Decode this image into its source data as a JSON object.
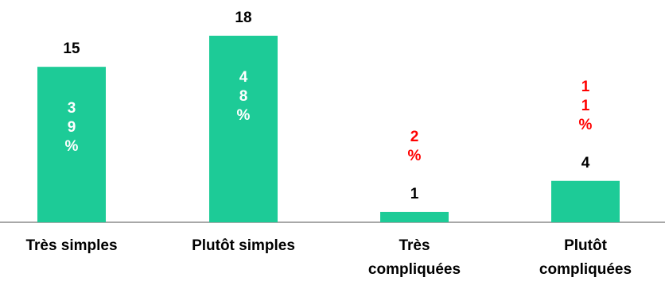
{
  "chart_data": {
    "type": "bar",
    "categories": [
      "Très simples",
      "Plutôt simples",
      "Très compliquées",
      "Plutôt compliquées"
    ],
    "values": [
      15,
      18,
      1,
      4
    ],
    "percent_labels": [
      "39%",
      "48%",
      "2%",
      "11%"
    ],
    "ylim": [
      0,
      18
    ],
    "grid": false,
    "legend": "none",
    "colors": {
      "bar": "#1DCB97",
      "percent_inside": "#ffffff",
      "percent_outside": "#ff0000",
      "count": "#000000",
      "axis": "#8c8c8c"
    }
  }
}
